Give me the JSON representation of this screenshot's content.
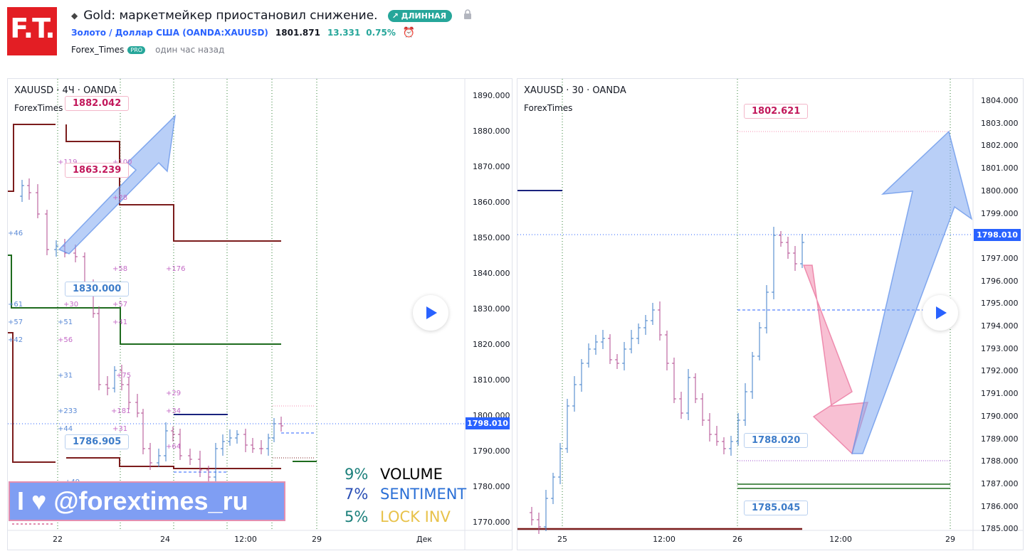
{
  "header": {
    "logo_text": "F.T.",
    "title": "Gold: маркетмейкер приостановил снижение.",
    "badge": "↗ ДЛИННАЯ",
    "symbol_full": "Золото / Доллар США (OANDA:XAUUSD)",
    "price": "1801.871",
    "change": "13.331",
    "change_pct": "0.75%",
    "author": "Forex_Times",
    "author_badge": "PRO",
    "published": "один час назад"
  },
  "left_chart": {
    "title": "XAUUSD · 4Ч · OANDA",
    "subtitle": "ForexTimes",
    "price_axis": [
      "1890.000",
      "1880.000",
      "1870.000",
      "1860.000",
      "1850.000",
      "1840.000",
      "1830.000",
      "1820.000",
      "1810.000",
      "1800.000",
      "1790.000",
      "1780.000",
      "1770.000"
    ],
    "current_price": "1798.010",
    "time_axis": [
      "22",
      "24",
      "12:00",
      "29",
      "Дек"
    ],
    "callouts": [
      "1882.042",
      "1863.239",
      "1830.000",
      "1786.905"
    ],
    "small_labels": [
      "+119",
      "+100",
      "+28",
      "+46",
      "+58",
      "+176",
      "+61",
      "+30",
      "+57",
      "+57",
      "+51",
      "+41",
      "+42",
      "+56",
      "+31",
      "+75",
      "+29",
      "+233",
      "+181",
      "+34",
      "+44",
      "+31",
      "+64",
      "+49"
    ],
    "stats": [
      {
        "pct": "9%",
        "label": "VOLUME"
      },
      {
        "pct": "7%",
        "label": "SENTIMENT"
      },
      {
        "pct": "5%",
        "label": "LOCK INV"
      }
    ],
    "banner": "I ♥ @forextimes_ru"
  },
  "right_chart": {
    "title": "XAUUSD · 30 · OANDA",
    "subtitle": "ForexTimes",
    "price_axis": [
      "1804.000",
      "1803.000",
      "1802.000",
      "1801.000",
      "1800.000",
      "1799.000",
      "1798.000",
      "1797.000",
      "1796.000",
      "1795.000",
      "1794.000",
      "1793.000",
      "1792.000",
      "1791.000",
      "1790.000",
      "1789.000",
      "1788.000",
      "1787.000",
      "1786.000",
      "1785.000"
    ],
    "current_price": "1798.010",
    "time_axis": [
      "25",
      "12:00",
      "26",
      "12:00",
      "29"
    ],
    "callouts": [
      "1802.621",
      "1788.020",
      "1785.045"
    ]
  },
  "colors": {
    "accent_green": "#26a69a",
    "link_blue": "#2962ff",
    "price_tag": "#2962ff",
    "callout_pink": "#c2185b",
    "callout_blue": "#3d7cc9",
    "vol_black": "#000000",
    "sent_blue": "#2a6fd6",
    "lock_yellow": "#e8c24a",
    "stat_pct": "#1a7f7a"
  }
}
